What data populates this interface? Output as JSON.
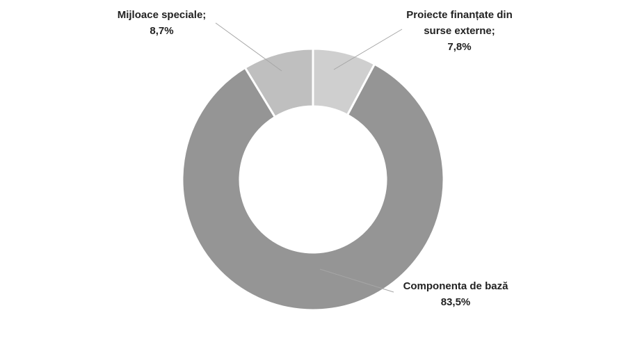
{
  "chart_data": {
    "type": "donut",
    "categories": [
      "Proiecte finanțate din surse externe;",
      "Componenta de bază",
      "Mijloace speciale;"
    ],
    "values": [
      7.8,
      83.5,
      8.7
    ],
    "value_labels": [
      "7,8%",
      "83,5%",
      "8,7%"
    ],
    "colors": [
      "#cfcfcf",
      "#959595",
      "#bfbfbf"
    ]
  }
}
